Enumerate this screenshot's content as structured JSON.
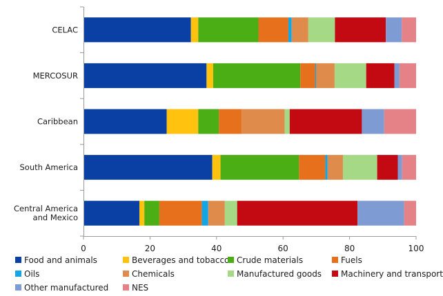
{
  "chart_data": {
    "type": "bar",
    "orientation": "horizontal",
    "stacked": true,
    "categories": [
      [
        "CELAC"
      ],
      [
        "MERCOSUR"
      ],
      [
        "Caribbean"
      ],
      [
        "South America"
      ],
      [
        "Central America",
        "and Mexico"
      ]
    ],
    "xlim": [
      0,
      100
    ],
    "xticks": [
      0,
      20,
      40,
      60,
      80,
      100
    ],
    "grid": false,
    "legend_position": "bottom",
    "series": [
      {
        "name": "Food and animals",
        "color": "#0a3fa4",
        "values": [
          32.3,
          37.0,
          25.0,
          38.7,
          16.8
        ]
      },
      {
        "name": "Beverages and tobacco",
        "color": "#ffc20e",
        "values": [
          2.2,
          2.0,
          9.5,
          2.5,
          1.5
        ]
      },
      {
        "name": "Crude materials",
        "color": "#4aae14",
        "values": [
          18.1,
          26.2,
          6.2,
          23.6,
          4.5
        ]
      },
      {
        "name": "Fuels",
        "color": "#e6701c",
        "values": [
          9.0,
          4.5,
          6.8,
          7.9,
          12.8
        ]
      },
      {
        "name": "Oils",
        "color": "#13a6e6",
        "values": [
          1.0,
          0.3,
          0.0,
          0.7,
          1.9
        ]
      },
      {
        "name": "Chemicals",
        "color": "#de8b4c",
        "values": [
          5.0,
          5.5,
          13.0,
          4.6,
          5.0
        ]
      },
      {
        "name": "Manufactured goods",
        "color": "#a6d985",
        "values": [
          8.0,
          9.5,
          1.5,
          10.3,
          3.7
        ]
      },
      {
        "name": "Machinery and transport",
        "color": "#c30a12",
        "values": [
          15.3,
          8.5,
          21.7,
          6.2,
          36.2
        ]
      },
      {
        "name": "Other manufactured",
        "color": "#7e9cd3",
        "values": [
          4.8,
          1.5,
          6.7,
          1.3,
          14.0
        ]
      },
      {
        "name": "NES",
        "color": "#e58288",
        "values": [
          4.3,
          5.0,
          9.6,
          4.2,
          3.6
        ]
      }
    ]
  }
}
